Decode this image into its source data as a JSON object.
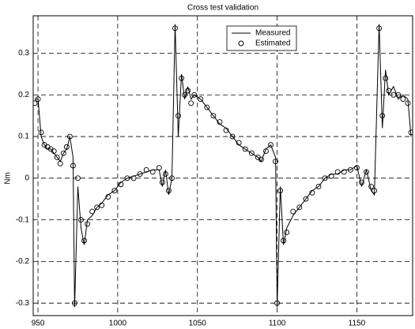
{
  "chart_data": {
    "type": "line",
    "title": "Cross test validation",
    "y_label": "Nm",
    "x": [
      948,
      950,
      952,
      954,
      956,
      958,
      960,
      962,
      964,
      966,
      968,
      970,
      972,
      973,
      975,
      977,
      979,
      981,
      984,
      987,
      990,
      994,
      998,
      1002,
      1006,
      1010,
      1014,
      1018,
      1022,
      1026,
      1028,
      1030,
      1032,
      1034,
      1036,
      1038,
      1040,
      1042,
      1044,
      1046,
      1048,
      1052,
      1056,
      1060,
      1064,
      1068,
      1072,
      1076,
      1080,
      1084,
      1088,
      1090,
      1093,
      1096,
      1099,
      1100,
      1102,
      1104,
      1106,
      1110,
      1114,
      1118,
      1122,
      1126,
      1130,
      1134,
      1138,
      1142,
      1146,
      1150,
      1153,
      1156,
      1159,
      1161,
      1164,
      1166,
      1168,
      1170,
      1173,
      1176,
      1179,
      1182,
      1184
    ],
    "series": [
      {
        "name": "Measured",
        "color": "#000000",
        "marker": "line",
        "values": [
          0.19,
          0.19,
          0.1,
          0.08,
          0.07,
          0.07,
          0.06,
          0.05,
          0.04,
          0.06,
          0.07,
          0.1,
          0.05,
          -0.31,
          -0.02,
          -0.12,
          -0.16,
          -0.1,
          -0.09,
          -0.07,
          -0.06,
          -0.04,
          -0.03,
          -0.01,
          0.0,
          0.005,
          0.01,
          0.015,
          0.02,
          0.02,
          -0.02,
          0.02,
          -0.04,
          0.0,
          0.37,
          0.1,
          0.25,
          0.19,
          0.22,
          0.19,
          0.2,
          0.19,
          0.17,
          0.15,
          0.13,
          0.12,
          0.1,
          0.08,
          0.07,
          0.06,
          0.05,
          0.04,
          0.07,
          0.08,
          0.05,
          -0.31,
          -0.02,
          -0.16,
          -0.12,
          -0.09,
          -0.07,
          -0.05,
          -0.03,
          -0.02,
          0.0,
          0.01,
          0.01,
          0.02,
          0.02,
          0.03,
          -0.02,
          0.02,
          -0.03,
          -0.04,
          0.37,
          0.12,
          0.26,
          0.2,
          0.22,
          0.19,
          0.2,
          0.19,
          0.1
        ]
      },
      {
        "name": "Estimated",
        "color": "#000000",
        "marker": "circle",
        "values": [
          0.18,
          0.19,
          0.11,
          0.08,
          0.075,
          0.07,
          0.065,
          0.05,
          0.035,
          0.06,
          0.075,
          0.1,
          0.03,
          -0.3,
          0.0,
          -0.1,
          -0.15,
          -0.11,
          -0.08,
          -0.07,
          -0.065,
          -0.045,
          -0.03,
          -0.015,
          0.0,
          0.0,
          0.01,
          0.02,
          0.015,
          0.025,
          -0.01,
          0.01,
          -0.03,
          0.0,
          0.36,
          0.15,
          0.24,
          0.2,
          0.21,
          0.18,
          0.2,
          0.19,
          0.17,
          0.15,
          0.135,
          0.115,
          0.1,
          0.085,
          0.07,
          0.06,
          0.05,
          0.045,
          0.065,
          0.08,
          0.04,
          -0.3,
          -0.03,
          -0.15,
          -0.13,
          -0.08,
          -0.07,
          -0.05,
          -0.035,
          -0.02,
          0.0,
          0.005,
          0.015,
          0.015,
          0.02,
          0.025,
          -0.01,
          0.015,
          -0.02,
          -0.03,
          0.36,
          0.15,
          0.24,
          0.21,
          0.2,
          0.2,
          0.19,
          0.18,
          0.11
        ]
      }
    ],
    "xlim": [
      947,
      1185
    ],
    "ylim": [
      -0.33,
      0.39
    ],
    "xticks": [
      950,
      1000,
      1050,
      1100,
      1150
    ],
    "yticks": [
      -0.3,
      -0.2,
      -0.1,
      0,
      0.1,
      0.2,
      0.3
    ],
    "grid": true,
    "legend": "top-center"
  }
}
